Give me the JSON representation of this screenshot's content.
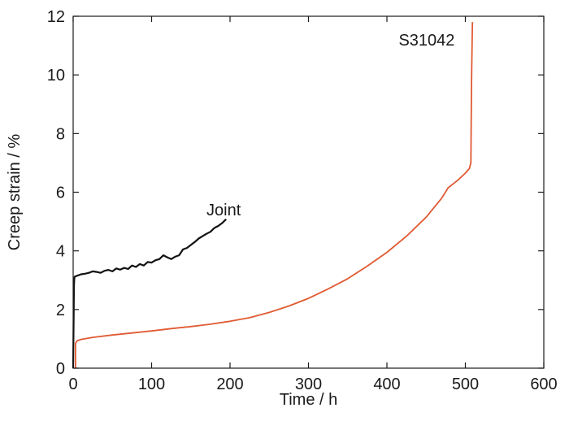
{
  "chart_data": {
    "type": "line",
    "xlabel": "Time / h",
    "ylabel": "Creep strain / %",
    "xlim": [
      0,
      600
    ],
    "ylim": [
      0,
      12
    ],
    "xticks": [
      0,
      100,
      200,
      300,
      400,
      500,
      600
    ],
    "yticks": [
      0,
      2,
      4,
      6,
      8,
      10,
      12
    ],
    "grid": false,
    "ticks_direction": "in",
    "series": [
      {
        "name": "S31042",
        "color": "#e05a33",
        "label_at": [
          415,
          11.2
        ],
        "x": [
          3,
          3,
          5,
          10,
          25,
          50,
          75,
          100,
          125,
          150,
          175,
          200,
          225,
          250,
          275,
          300,
          325,
          350,
          375,
          400,
          425,
          450,
          470,
          478,
          490,
          500,
          505,
          507,
          507.5,
          508,
          509
        ],
        "y": [
          0,
          0.85,
          0.93,
          0.98,
          1.05,
          1.13,
          1.2,
          1.27,
          1.35,
          1.42,
          1.5,
          1.6,
          1.72,
          1.9,
          2.12,
          2.38,
          2.7,
          3.05,
          3.48,
          3.95,
          4.5,
          5.15,
          5.8,
          6.15,
          6.4,
          6.65,
          6.8,
          7.0,
          8.5,
          10.0,
          11.8
        ]
      },
      {
        "name": "Joint",
        "color": "#111111",
        "label_at": [
          170,
          5.4
        ],
        "x": [
          0,
          1,
          1.5,
          2,
          5,
          10,
          15,
          20,
          25,
          30,
          35,
          40,
          45,
          50,
          55,
          60,
          65,
          70,
          75,
          80,
          85,
          90,
          95,
          100,
          105,
          110,
          115,
          120,
          125,
          130,
          135,
          140,
          145,
          150,
          155,
          160,
          165,
          170,
          175,
          180,
          185,
          190,
          195
        ],
        "y": [
          0,
          2.8,
          3.05,
          3.12,
          3.15,
          3.2,
          3.22,
          3.25,
          3.3,
          3.28,
          3.25,
          3.32,
          3.35,
          3.3,
          3.4,
          3.36,
          3.42,
          3.38,
          3.5,
          3.45,
          3.55,
          3.5,
          3.62,
          3.6,
          3.68,
          3.72,
          3.85,
          3.78,
          3.72,
          3.8,
          3.85,
          4.05,
          4.1,
          4.2,
          4.3,
          4.42,
          4.5,
          4.58,
          4.65,
          4.78,
          4.85,
          4.95,
          5.08
        ]
      }
    ]
  }
}
